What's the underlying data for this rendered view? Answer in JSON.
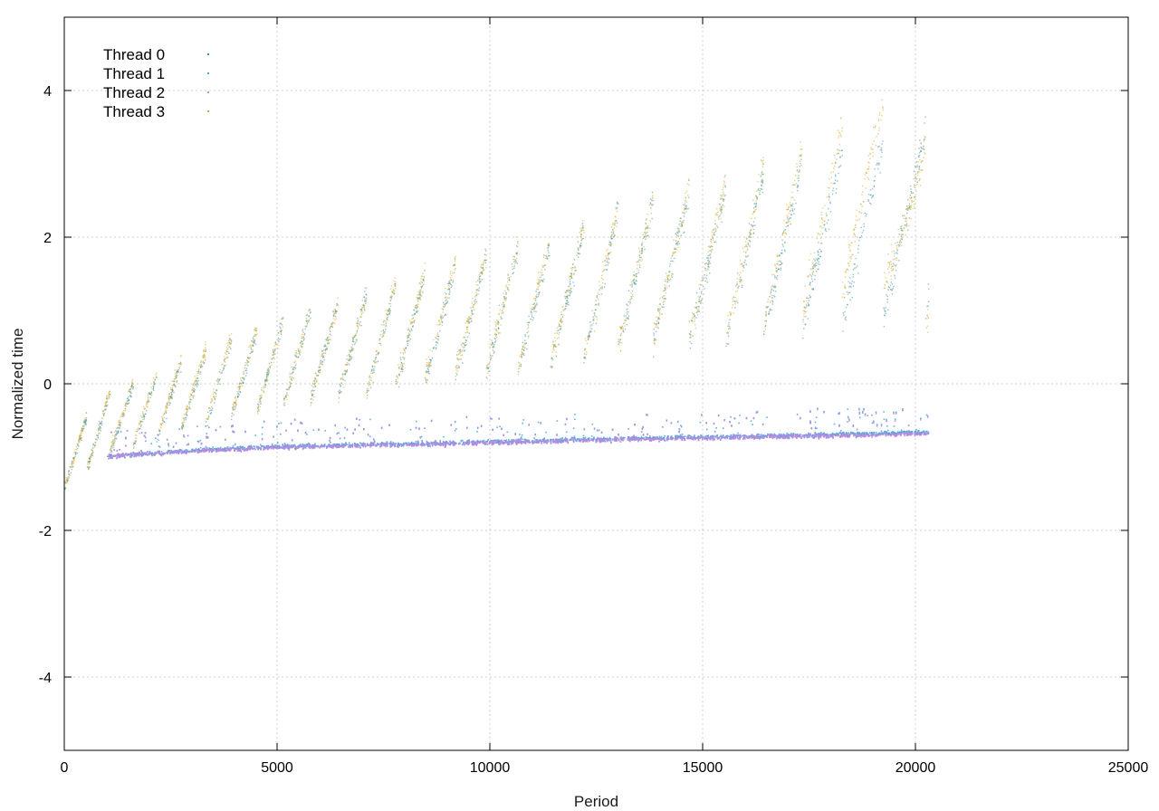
{
  "chart_data": {
    "type": "scatter",
    "title": "",
    "xlabel": "Period",
    "ylabel": "Normalized time",
    "xlim": [
      0,
      25000
    ],
    "ylim": [
      -5,
      5
    ],
    "xticks": [
      0,
      5000,
      10000,
      15000,
      20000,
      25000
    ],
    "yticks": [
      -4,
      -2,
      0,
      2,
      4
    ],
    "xtick_labels": [
      "0",
      "5000",
      "10000",
      "15000",
      "20000",
      "25000"
    ],
    "ytick_labels": [
      "-4",
      "-2",
      "0",
      "2",
      "4"
    ],
    "grid": true,
    "legend_position": "top-left",
    "series": [
      {
        "name": "Thread 0",
        "color": "#3a8f9a",
        "marker": "dot",
        "pattern": "sawtooth band rising from about -1.05 at 0 to about 2.3 near 20300, with spikes up to about 4",
        "x": [
          0,
          1000,
          2000,
          3000,
          4000,
          5000,
          6000,
          7000,
          8000,
          9000,
          10000,
          11000,
          12000,
          13000,
          14000,
          15000,
          16000,
          17000,
          18000,
          19000,
          20000
        ],
        "y": [
          -1.05,
          -0.55,
          -0.35,
          -0.1,
          0.1,
          0.3,
          0.45,
          0.55,
          0.7,
          0.85,
          1.0,
          1.05,
          1.2,
          1.4,
          1.6,
          1.6,
          1.7,
          1.9,
          2.0,
          2.1,
          2.2
        ]
      },
      {
        "name": "Thread 1",
        "color": "#4aa3d8",
        "marker": "dot",
        "pattern": "narrow band rising slowly from about -0.98 at 1000 to about -0.65 near 20300",
        "x": [
          1000,
          3000,
          5000,
          7000,
          9000,
          11000,
          13000,
          15000,
          17000,
          19000,
          20300
        ],
        "y": [
          -0.98,
          -0.9,
          -0.85,
          -0.82,
          -0.8,
          -0.77,
          -0.74,
          -0.72,
          -0.7,
          -0.67,
          -0.65
        ]
      },
      {
        "name": "Thread 2",
        "color": "#b98be0",
        "marker": "dot",
        "pattern": "narrow band just below Thread 1, rising from about -0.98 at 1000 to about -0.67 near 20300",
        "x": [
          1000,
          3000,
          5000,
          7000,
          9000,
          11000,
          13000,
          15000,
          17000,
          19000,
          20300
        ],
        "y": [
          -0.98,
          -0.91,
          -0.86,
          -0.83,
          -0.81,
          -0.78,
          -0.75,
          -0.73,
          -0.71,
          -0.69,
          -0.67
        ]
      },
      {
        "name": "Thread 3",
        "color": "#d9a826",
        "marker": "dot",
        "pattern": "sawtooth band rising from about -1.05 at 0 to about 2.0 near 20300, with spikes up to about 4.8",
        "x": [
          0,
          1000,
          2000,
          3000,
          4000,
          5000,
          6000,
          7000,
          8000,
          9000,
          10000,
          11000,
          12000,
          13000,
          14000,
          15000,
          16000,
          17000,
          18000,
          19000,
          20000
        ],
        "y": [
          -1.05,
          -0.5,
          -0.3,
          -0.05,
          0.15,
          0.3,
          0.45,
          0.55,
          0.75,
          0.9,
          1.0,
          1.1,
          1.25,
          1.45,
          1.6,
          1.65,
          1.8,
          2.0,
          2.3,
          2.7,
          2.0
        ]
      }
    ]
  }
}
